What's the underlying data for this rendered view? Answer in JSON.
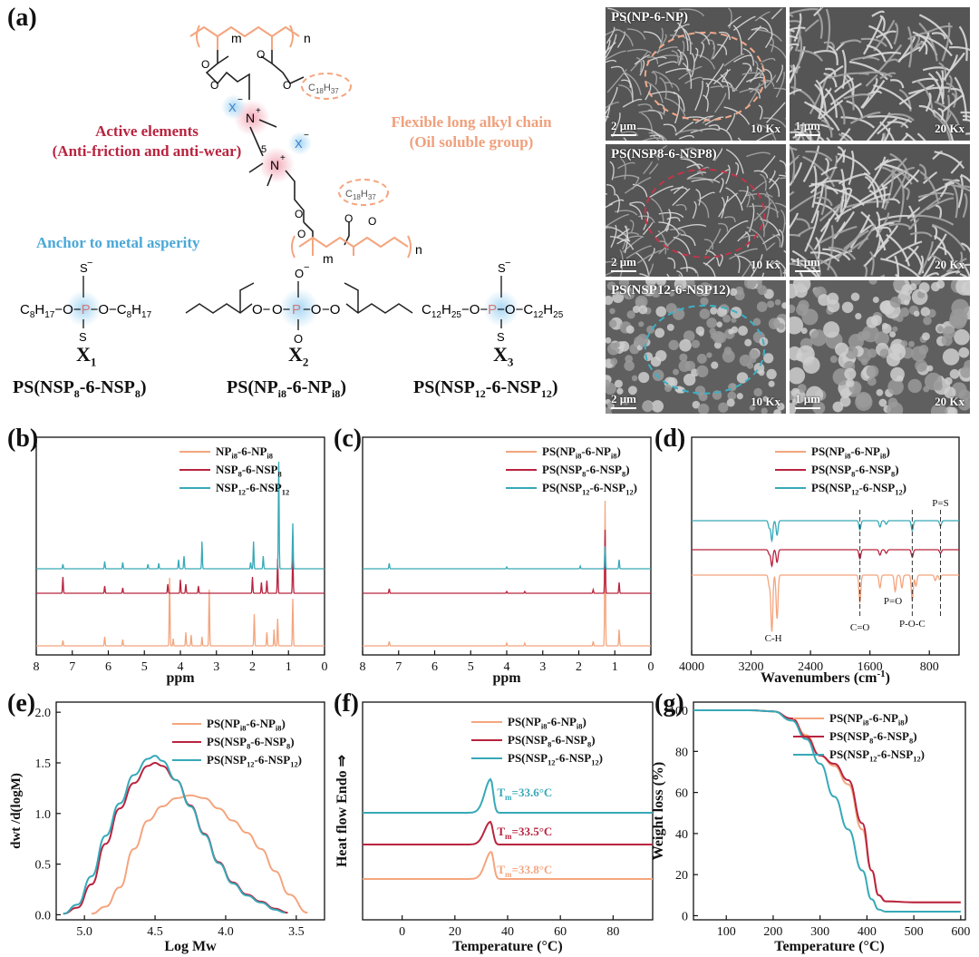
{
  "panels": {
    "a": "(a)",
    "b": "(b)",
    "c": "(c)",
    "d": "(d)",
    "e": "(e)",
    "f": "(f)",
    "g": "(g)"
  },
  "scheme": {
    "active_title": "Active elements",
    "active_sub": "(Anti-friction and anti-wear)",
    "flexible_title": "Flexible long alkyl chain",
    "flexible_sub": "(Oil soluble group)",
    "anchor": "Anchor to metal asperity",
    "repeat_m": "m",
    "repeat_n": "n",
    "alkyl_c18": "C18H37",
    "spacer": "5",
    "anion": "X",
    "x1_label": "X1",
    "x2_label": "X2",
    "x3_label": "X3",
    "x1_r": "C8H17",
    "x3_r": "C12H25",
    "name1": "PS(NSP8-6-NSP8)",
    "name2": "PS(NPi8-6-NPi8)",
    "name3": "PS(NSP12-6-NSP12)"
  },
  "sem": {
    "rows": [
      {
        "title": "PS(NP-6-NP)",
        "scale_left": "2 μm",
        "mag_left": "10 Kx",
        "scale_right": "1 μm",
        "mag_right": "20 Kx",
        "accent": "#f2a889"
      },
      {
        "title": "PS(NSP8-6-NSP8)",
        "scale_left": "2 μm",
        "mag_left": "10 Kx",
        "scale_right": "1 μm",
        "mag_right": "20 Kx",
        "accent": "#c0354a"
      },
      {
        "title": "PS(NSP12-6-NSP12)",
        "scale_left": "2 μm",
        "mag_left": "10 Kx",
        "scale_right": "1 μm",
        "mag_right": "20 Kx",
        "accent": "#3bb0c6"
      }
    ]
  },
  "colors": {
    "orange": "#f4a57e",
    "red": "#b8243f",
    "teal": "#37a9b8"
  },
  "chart_data": [
    {
      "panel": "b",
      "type": "line",
      "xlabel": "ppm",
      "ylabel": "",
      "xlim": [
        8,
        0
      ],
      "xticks": [
        8,
        7,
        6,
        5,
        4,
        3,
        2,
        1,
        0
      ],
      "series": [
        {
          "name": "NPi8-6-NPi8",
          "color": "#f4a57e"
        },
        {
          "name": "NSP8-6-NSP8",
          "color": "#b8243f"
        },
        {
          "name": "NSP12-6-NSP12",
          "color": "#37a9b8"
        }
      ]
    },
    {
      "panel": "c",
      "type": "line",
      "xlabel": "ppm",
      "ylabel": "",
      "xlim": [
        8,
        0
      ],
      "xticks": [
        8,
        7,
        6,
        5,
        4,
        3,
        2,
        1,
        0
      ],
      "series": [
        {
          "name": "PS(NPi8-6-NPi8)",
          "color": "#f4a57e"
        },
        {
          "name": "PS(NSP8-6-NSP8)",
          "color": "#b8243f"
        },
        {
          "name": "PS(NSP12-6-NSP12)",
          "color": "#37a9b8"
        }
      ]
    },
    {
      "panel": "d",
      "type": "line",
      "xlabel": "Wavenumbers (cm-1)",
      "ylabel": "",
      "xlim": [
        4000,
        400
      ],
      "xticks": [
        4000,
        3200,
        2400,
        1600,
        800
      ],
      "annotations": [
        "C-H",
        "C=O",
        "P=O",
        "P-O-C",
        "P=S"
      ],
      "series": [
        {
          "name": "PS(NPi8-6-NPi8)",
          "color": "#f4a57e"
        },
        {
          "name": "PS(NSP8-6-NSP8)",
          "color": "#b8243f"
        },
        {
          "name": "PS(NSP12-6-NSP12)",
          "color": "#37a9b8"
        }
      ]
    },
    {
      "panel": "e",
      "type": "line",
      "xlabel": "Log Mw",
      "ylabel": "dwt /d(logM)",
      "xlim": [
        5.2,
        3.3
      ],
      "xticks": [
        5.0,
        4.5,
        4.0,
        3.5
      ],
      "ylim": [
        -0.05,
        2.1
      ],
      "yticks": [
        0.0,
        0.5,
        1.0,
        1.5,
        2.0
      ],
      "series": [
        {
          "name": "PS(NPi8-6-NPi8)",
          "color": "#f4a57e",
          "x": [
            4.95,
            4.85,
            4.75,
            4.65,
            4.55,
            4.45,
            4.35,
            4.25,
            4.15,
            4.05,
            3.95,
            3.85,
            3.75,
            3.65,
            3.55,
            3.42
          ],
          "y": [
            0.01,
            0.08,
            0.27,
            0.65,
            0.93,
            1.07,
            1.15,
            1.18,
            1.15,
            1.05,
            0.93,
            0.81,
            0.65,
            0.43,
            0.2,
            0.02
          ]
        },
        {
          "name": "PS(NSP8-6-NSP8)",
          "color": "#b8243f",
          "x": [
            5.15,
            5.05,
            4.95,
            4.85,
            4.75,
            4.65,
            4.55,
            4.5,
            4.45,
            4.35,
            4.25,
            4.15,
            4.05,
            3.95,
            3.85,
            3.75,
            3.65,
            3.56
          ],
          "y": [
            0.01,
            0.07,
            0.3,
            0.7,
            1.05,
            1.3,
            1.47,
            1.5,
            1.47,
            1.33,
            1.08,
            0.8,
            0.52,
            0.32,
            0.2,
            0.13,
            0.06,
            0.02
          ]
        },
        {
          "name": "PS(NSP12-6-NSP12)",
          "color": "#37a9b8",
          "x": [
            5.15,
            5.05,
            4.95,
            4.85,
            4.75,
            4.65,
            4.55,
            4.5,
            4.45,
            4.35,
            4.25,
            4.15,
            4.05,
            3.95,
            3.85,
            3.75,
            3.65,
            3.58
          ],
          "y": [
            0.01,
            0.1,
            0.38,
            0.78,
            1.1,
            1.38,
            1.54,
            1.57,
            1.52,
            1.33,
            1.07,
            0.79,
            0.51,
            0.31,
            0.19,
            0.12,
            0.05,
            0.02
          ]
        }
      ]
    },
    {
      "panel": "f",
      "type": "line",
      "xlabel": "Temperature (°C)",
      "ylabel": "Heat flow   Endo ⇒",
      "xlim": [
        -15,
        95
      ],
      "xticks": [
        0,
        20,
        40,
        60,
        80
      ],
      "annotations": [
        "Tm=33.6°C",
        "Tm=33.5°C",
        "Tm=33.8°C"
      ],
      "series": [
        {
          "name": "PS(NPi8-6-NPi8)",
          "color": "#f4a57e",
          "tm": 33.8
        },
        {
          "name": "PS(NSP8-6-NSP8)",
          "color": "#b8243f",
          "tm": 33.5
        },
        {
          "name": "PS(NSP12-6-NSP12)",
          "color": "#37a9b8",
          "tm": 33.6
        }
      ]
    },
    {
      "panel": "g",
      "type": "line",
      "xlabel": "Temperature (°C)",
      "ylabel": "Weight loss (%)",
      "xlim": [
        30,
        610
      ],
      "xticks": [
        100,
        200,
        300,
        400,
        500,
        600
      ],
      "ylim": [
        -2,
        104
      ],
      "yticks": [
        0,
        20,
        40,
        60,
        80,
        100
      ],
      "series": [
        {
          "name": "PS(NPi8-6-NPi8)",
          "color": "#f4a57e",
          "x": [
            30,
            150,
            200,
            240,
            270,
            300,
            330,
            360,
            390,
            410,
            425,
            440,
            500,
            600
          ],
          "y": [
            100,
            100,
            99.5,
            96,
            88,
            78,
            73,
            64,
            42,
            22,
            10,
            7,
            6.5,
            6.5
          ]
        },
        {
          "name": "PS(NSP8-6-NSP8)",
          "color": "#b8243f",
          "x": [
            30,
            150,
            200,
            240,
            270,
            300,
            330,
            360,
            390,
            410,
            425,
            440,
            500,
            600
          ],
          "y": [
            100,
            100,
            99.5,
            96,
            87,
            78,
            74,
            66,
            45,
            22,
            10,
            7,
            6.5,
            6.5
          ]
        },
        {
          "name": "PS(NSP12-6-NSP12)",
          "color": "#37a9b8",
          "x": [
            30,
            150,
            200,
            240,
            270,
            300,
            330,
            360,
            390,
            410,
            425,
            440,
            500,
            600
          ],
          "y": [
            100,
            100,
            99.5,
            95,
            86,
            74,
            58,
            42,
            22,
            8,
            3,
            2,
            2,
            2
          ]
        }
      ]
    }
  ]
}
